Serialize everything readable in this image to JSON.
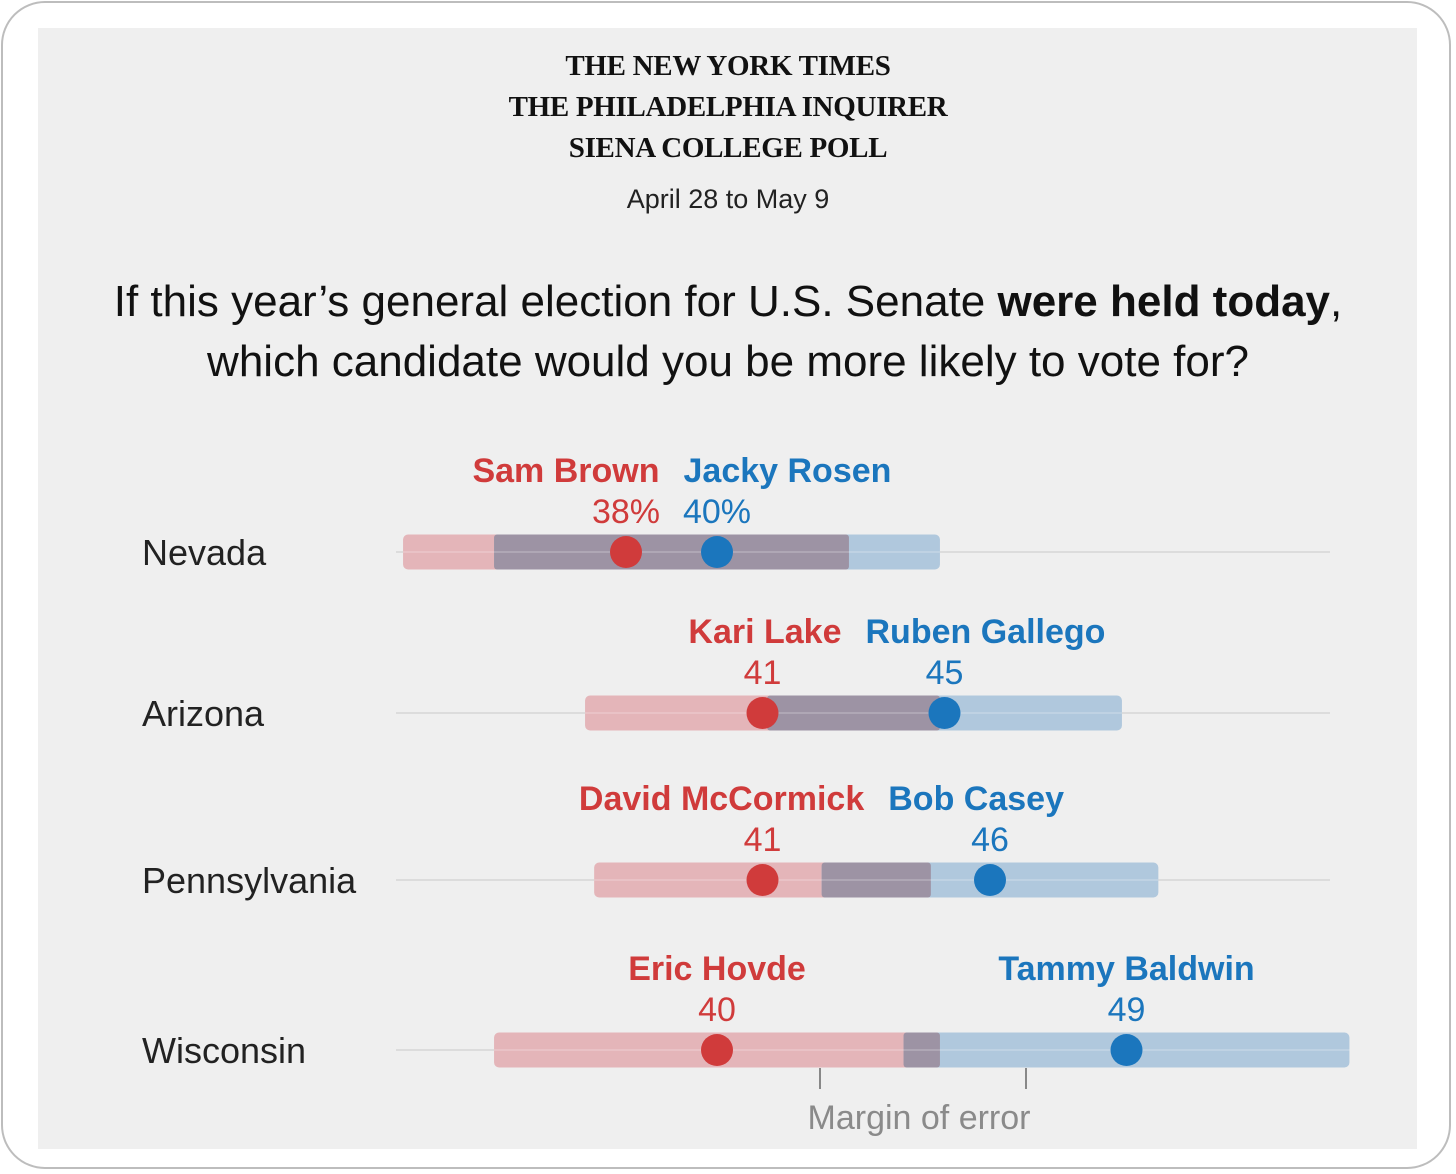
{
  "header": {
    "masthead": [
      "THE NEW YORK TIMES",
      "THE PHILADELPHIA INQUIRER",
      "SIENA COLLEGE POLL"
    ],
    "dates": "April 28 to May 9"
  },
  "question": {
    "part1": "If this year’s general election for U.S. Senate ",
    "emphasis": "were held today",
    "part2": ",",
    "line2": "which candidate would you be more likely to vote for?"
  },
  "colors": {
    "republican": "#d03b3b",
    "democrat": "#1b76bd",
    "republican_band": "#e4b5b9",
    "democrat_band": "#b0c8dd",
    "overlap_band": "#9d93a4",
    "background": "#efefef"
  },
  "chart_data": {
    "type": "dot-range",
    "margin_of_error_label": "Margin of error",
    "states": [
      {
        "state": "Nevada",
        "republican": {
          "name": "Sam Brown",
          "value": 38,
          "label": "38%"
        },
        "democrat": {
          "name": "Jacky Rosen",
          "value": 40,
          "label": "40%"
        },
        "margin_of_error": 4.9
      },
      {
        "state": "Arizona",
        "republican": {
          "name": "Kari Lake",
          "value": 41,
          "label": "41"
        },
        "democrat": {
          "name": "Ruben Gallego",
          "value": 45,
          "label": "45"
        },
        "margin_of_error": 3.9
      },
      {
        "state": "Pennsylvania",
        "republican": {
          "name": "David McCormick",
          "value": 41,
          "label": "41"
        },
        "democrat": {
          "name": "Bob Casey",
          "value": 46,
          "label": "46"
        },
        "margin_of_error": 3.7
      },
      {
        "state": "Wisconsin",
        "republican": {
          "name": "Eric Hovde",
          "value": 40,
          "label": "40"
        },
        "democrat": {
          "name": "Tammy Baldwin",
          "value": 49,
          "label": "49"
        },
        "margin_of_error": 4.9
      }
    ]
  }
}
